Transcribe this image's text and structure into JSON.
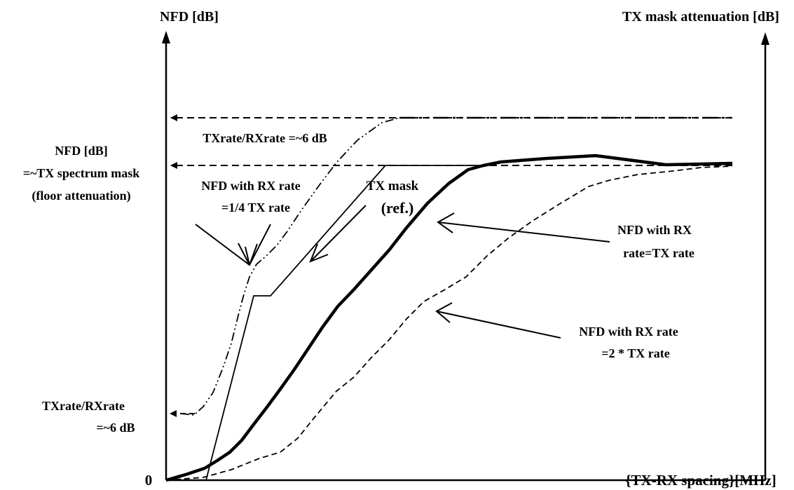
{
  "axes": {
    "left_title": "NFD [dB]",
    "right_title": "TX mask attenuation [dB]",
    "x_title": "{TX-RX spacing}[MHz]",
    "origin_label": "0"
  },
  "left_labels": {
    "floor_line1": "NFD [dB]",
    "floor_line2": "=~TX spectrum mask",
    "floor_line3": "(floor attenuation)",
    "low_line1": "TXrate/RXrate",
    "low_line2": "=~6 dB"
  },
  "annotations": {
    "upper_offset": "TXrate/RXrate =~6 dB",
    "quarter_line1": "NFD with RX rate",
    "quarter_line2": "=1/4 TX rate",
    "mask_line1": "TX mask",
    "mask_line2": "(ref.)",
    "equal_line1": "NFD with RX",
    "equal_line2": "rate=TX rate",
    "double_line1": "NFD with RX rate",
    "double_line2": "=2 * TX rate"
  },
  "curves": [
    {
      "id": "nfd-quarter",
      "style": "dash-dot-dot, thin"
    },
    {
      "id": "tx-mask",
      "style": "solid, thin"
    },
    {
      "id": "nfd-equal",
      "style": "solid, thick"
    },
    {
      "id": "nfd-double",
      "style": "dashed, thin"
    }
  ],
  "colors": {
    "ink": "#000000",
    "background": "#ffffff"
  }
}
